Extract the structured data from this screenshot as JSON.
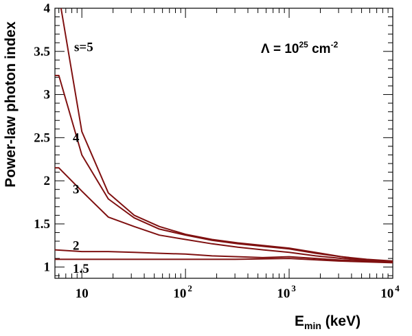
{
  "chart_data": {
    "type": "line",
    "title": "",
    "xlabel_main": "E",
    "xlabel_sub": "min",
    "xlabel_unit": " (keV)",
    "ylabel": "Power-law photon index",
    "xscale": "log",
    "xlim": [
      5.5,
      10000
    ],
    "ylim": [
      0.87,
      4
    ],
    "grid": false,
    "annotation": {
      "prefix": "Λ = 10",
      "exponent": "25",
      "unit": " cm",
      "unit_exponent": "-2"
    },
    "x_ticks": [
      {
        "base": "10",
        "exp": ""
      },
      {
        "base": "10",
        "exp": "2"
      },
      {
        "base": "10",
        "exp": "3"
      },
      {
        "base": "10",
        "exp": "4"
      }
    ],
    "y_ticks": [
      "1",
      "1.5",
      "2",
      "2.5",
      "3",
      "3.5",
      "4"
    ],
    "line_color": "#7f1010",
    "series": [
      {
        "name": "s=5",
        "x": [
          6.3,
          10,
          18,
          32,
          56,
          100,
          180,
          320,
          560,
          1000,
          1800,
          3200,
          5600,
          10000
        ],
        "y": [
          4.0,
          2.57,
          1.86,
          1.6,
          1.47,
          1.38,
          1.32,
          1.28,
          1.25,
          1.22,
          1.17,
          1.12,
          1.09,
          1.07
        ]
      },
      {
        "name": "4",
        "x": [
          5.5,
          6,
          10,
          18,
          32,
          56,
          100,
          180,
          320,
          560,
          1000,
          1800,
          3200,
          5600,
          10000
        ],
        "y": [
          3.22,
          3.22,
          2.3,
          1.79,
          1.57,
          1.44,
          1.37,
          1.31,
          1.27,
          1.24,
          1.21,
          1.16,
          1.12,
          1.08,
          1.06
        ]
      },
      {
        "name": "3",
        "x": [
          5.5,
          6,
          10,
          18,
          32,
          56,
          100,
          180,
          320,
          560,
          1000,
          1800,
          3200,
          5600,
          10000
        ],
        "y": [
          2.15,
          2.15,
          1.88,
          1.58,
          1.47,
          1.37,
          1.32,
          1.27,
          1.23,
          1.2,
          1.17,
          1.13,
          1.1,
          1.08,
          1.06
        ]
      },
      {
        "name": "2",
        "x": [
          5.5,
          10,
          18,
          32,
          56,
          100,
          180,
          320,
          560,
          1000,
          1800,
          3200,
          5600,
          10000
        ],
        "y": [
          1.2,
          1.18,
          1.18,
          1.17,
          1.16,
          1.15,
          1.13,
          1.12,
          1.11,
          1.12,
          1.1,
          1.08,
          1.07,
          1.06
        ]
      },
      {
        "name": "1.5",
        "x": [
          5.5,
          10,
          30,
          100,
          300,
          1000,
          3000,
          10000
        ],
        "y": [
          1.09,
          1.09,
          1.09,
          1.09,
          1.09,
          1.1,
          1.07,
          1.05
        ]
      }
    ]
  }
}
